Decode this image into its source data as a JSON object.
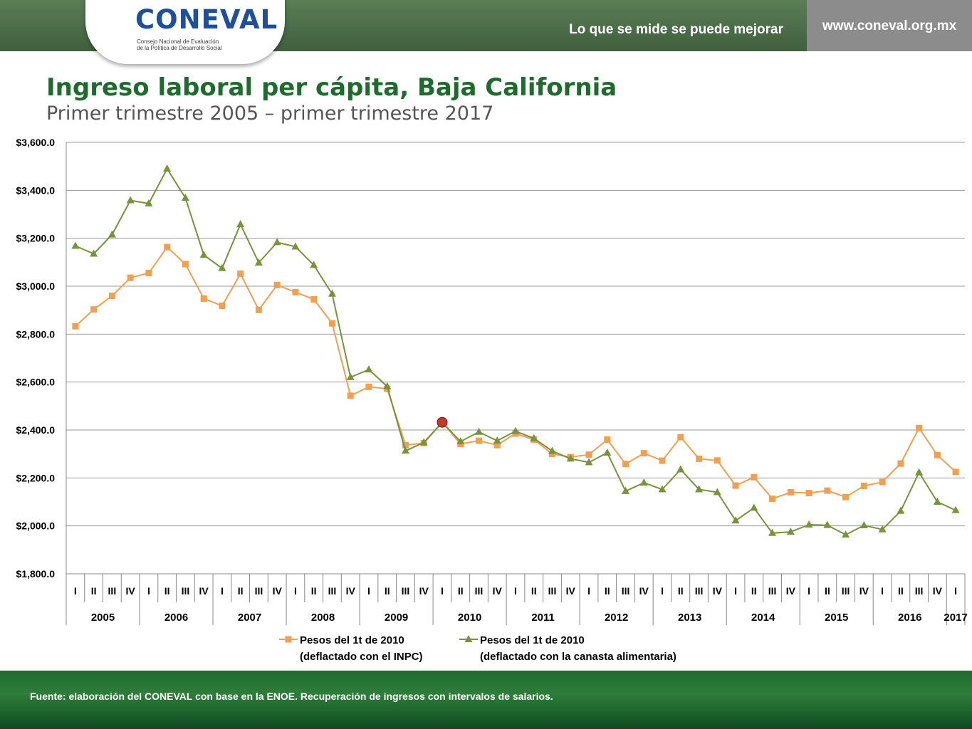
{
  "header": {
    "logo_text": "CONEVAL",
    "logo_subtitle_1": "Consejo Nacional de Evaluación",
    "logo_subtitle_2": "de la Política de Desarrollo Social",
    "slogan": "Lo que se mide se puede mejorar",
    "url": "www.coneval.org.mx"
  },
  "footer": {
    "source": "Fuente: elaboración del CONEVAL con base en la ENOE. Recuperación de ingresos con intervalos de salarios."
  },
  "colors": {
    "series_inpc": "#f0a050",
    "series_canasta": "#77933c",
    "title": "#1e6b2e",
    "highlight": "#c0392b"
  },
  "chart_data": {
    "type": "line",
    "title": "Ingreso laboral per cápita, Baja California",
    "subtitle": "Primer trimestre 2005 – primer trimestre 2017",
    "ylim": [
      1800,
      3600
    ],
    "yticks": [
      "$1,800.0",
      "$2,000.0",
      "$2,200.0",
      "$2,400.0",
      "$2,600.0",
      "$2,800.0",
      "$3,000.0",
      "$3,200.0",
      "$3,400.0",
      "$3,600.0"
    ],
    "ytick_values": [
      1800,
      2000,
      2200,
      2400,
      2600,
      2800,
      3000,
      3200,
      3400,
      3600
    ],
    "quarters": [
      "I",
      "II",
      "III",
      "IV",
      "I",
      "II",
      "III",
      "IV",
      "I",
      "II",
      "III",
      "IV",
      "I",
      "II",
      "III",
      "IV",
      "I",
      "II",
      "III",
      "IV",
      "I",
      "II",
      "III",
      "IV",
      "I",
      "II",
      "III",
      "IV",
      "I",
      "II",
      "III",
      "IV",
      "I",
      "II",
      "III",
      "IV",
      "I",
      "II",
      "III",
      "IV",
      "I",
      "II",
      "III",
      "IV",
      "I",
      "II",
      "III",
      "IV",
      "I"
    ],
    "years": [
      "2005",
      "2006",
      "2007",
      "2008",
      "2009",
      "2010",
      "2011",
      "2012",
      "2013",
      "2014",
      "2015",
      "2016",
      "2017"
    ],
    "grid": true,
    "legend_position": "bottom",
    "highlight_point": {
      "quarter_index": 20,
      "value": 2432
    },
    "series": [
      {
        "name": "Pesos del 1t de 2010",
        "name_line2": "(deflactado con el INPC)",
        "marker": "square",
        "values": [
          2833,
          2903,
          2960,
          3035,
          3055,
          3163,
          3092,
          2948,
          2918,
          3052,
          2901,
          3005,
          2975,
          2945,
          2845,
          2543,
          2580,
          2572,
          2337,
          2345,
          2432,
          2342,
          2355,
          2337,
          2385,
          2360,
          2300,
          2287,
          2297,
          2360,
          2258,
          2303,
          2272,
          2370,
          2280,
          2273,
          2168,
          2203,
          2113,
          2140,
          2137,
          2147,
          2120,
          2167,
          2183,
          2260,
          2408,
          2295,
          2225
        ]
      },
      {
        "name": "Pesos del 1t de 2010",
        "name_line2": "(deflactado con la canasta alimentaria)",
        "marker": "triangle",
        "values": [
          3168,
          3135,
          3215,
          3358,
          3345,
          3490,
          3368,
          3130,
          3075,
          3258,
          3098,
          3183,
          3165,
          3088,
          2968,
          2620,
          2652,
          2582,
          2313,
          2348,
          2432,
          2352,
          2392,
          2355,
          2395,
          2365,
          2312,
          2280,
          2265,
          2305,
          2145,
          2180,
          2152,
          2235,
          2152,
          2140,
          2022,
          2075,
          1970,
          1975,
          2005,
          2003,
          1963,
          2002,
          1985,
          2062,
          2223,
          2100,
          2065
        ]
      }
    ]
  }
}
